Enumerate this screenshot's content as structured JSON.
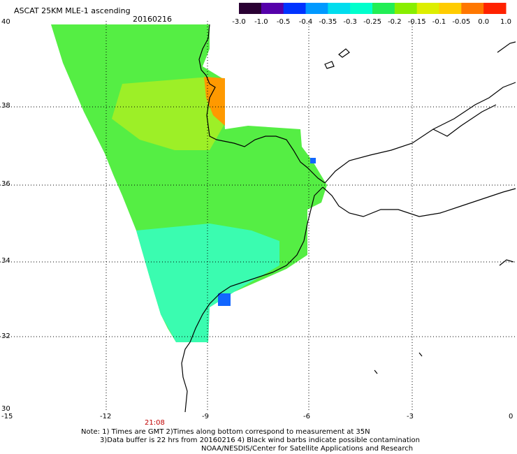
{
  "header": {
    "title": "ASCAT 25KM MLE-1 ascending",
    "date": "20160216"
  },
  "colorbar": {
    "labels": [
      "-3.0",
      "-1.0",
      "-0.5",
      "-0.4",
      "-0.35",
      "-0.3",
      "-0.25",
      "-0.2",
      "-0.15",
      "-0.1",
      "-0.05",
      "0.0",
      "1.0"
    ],
    "colors": [
      "#2a0033",
      "#5500aa",
      "#0033ff",
      "#0099ff",
      "#00ddee",
      "#00ffcc",
      "#22ee55",
      "#88ee00",
      "#ddee00",
      "#ffcc00",
      "#ff7700",
      "#ff2200"
    ]
  },
  "axes": {
    "y_labels": [
      "40",
      "38",
      "36",
      "34",
      "32",
      "30"
    ],
    "x_labels": [
      "-15",
      "-12",
      "-9",
      "-6",
      "-3",
      "0"
    ]
  },
  "time_label": "21:08",
  "notes": {
    "line1": "Note: 1) Times are GMT 2)Times along bottom correspond to measurement at 35N",
    "line2": "3)Data buffer is 22 hrs from 20160216 4) Black wind barbs indicate possible contamination",
    "line3": "NOAA/NESDIS/Center for Satellite Applications and Research"
  }
}
